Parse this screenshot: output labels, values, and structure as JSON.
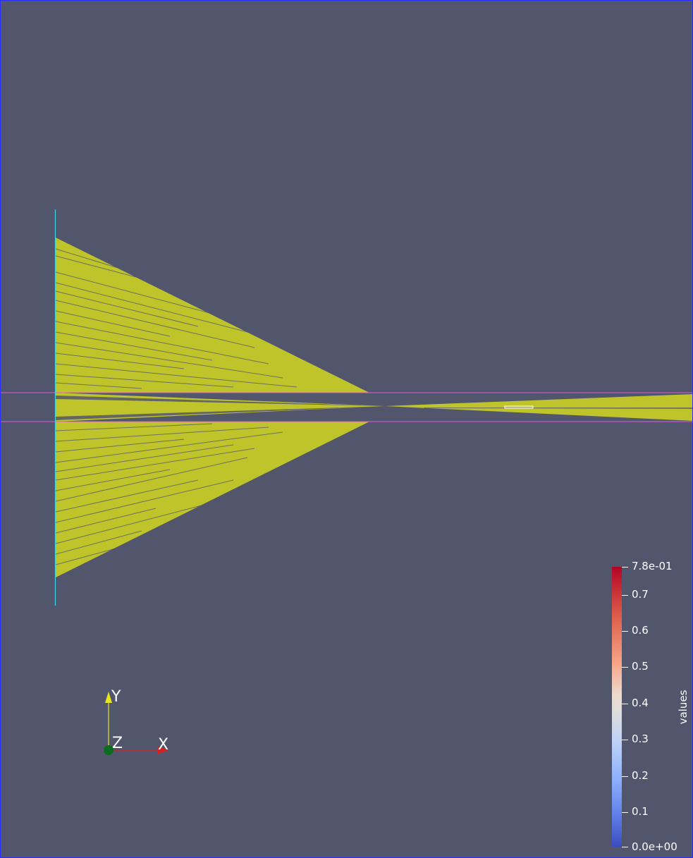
{
  "scalar_bar": {
    "title": "values",
    "max_label": "7.8e-01",
    "min_label": "0.0e+00",
    "ticks": [
      "0.7",
      "0.6",
      "0.5",
      "0.4",
      "0.3",
      "0.2",
      "0.1"
    ],
    "range": [
      0.0,
      0.78
    ]
  },
  "orientation_axes": {
    "x_label": "X",
    "y_label": "Y",
    "z_label": "Z",
    "x_color": "#d62020",
    "y_color": "#e6e61e",
    "z_color": "#0d6b1e"
  },
  "colors": {
    "background": "#52566c",
    "rays": "#bfc42a",
    "source_plane": "#3fd3e6",
    "boundary_lines": "#e05ae0",
    "viewport_border": "#2a2dff"
  }
}
